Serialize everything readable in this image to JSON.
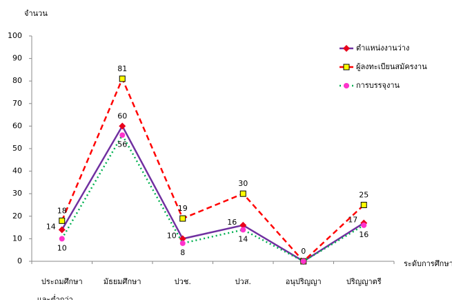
{
  "chart_data": {
    "type": "line",
    "y_label": "จำนวน",
    "x_label": "ระดับการศึกษา",
    "categories": [
      "ประถมศึกษา\nและต่ำกว่า",
      "มัธยมศึกษา",
      "ปวช.",
      "ปวส.",
      "อนุปริญญา",
      "ปริญญาตรี"
    ],
    "series": [
      {
        "name": "ตำแหน่งงานว่าง",
        "color": "#7030a0",
        "marker_color": "#e8001c",
        "marker": "diamond",
        "dash": "solid",
        "values": [
          14,
          60,
          10,
          16,
          0,
          17
        ],
        "value_labels": [
          "14",
          "60",
          "10",
          "16",
          null,
          "17"
        ]
      },
      {
        "name": "ผู้ลงทะเบียนสมัครงาน",
        "color": "#ff0000",
        "marker_color": "#ffff00",
        "marker": "square",
        "dash": "dashed",
        "values": [
          18,
          81,
          19,
          30,
          0,
          25
        ],
        "value_labels": [
          "18",
          "81",
          "19",
          "30",
          "0",
          "25"
        ]
      },
      {
        "name": "การบรรจุงาน",
        "color": "#00b050",
        "marker_color": "#ff33cc",
        "marker": "circle",
        "dash": "dotted",
        "values": [
          10,
          56,
          8,
          14,
          0,
          16
        ],
        "value_labels": [
          "10",
          "56",
          "8",
          "14",
          null,
          "16"
        ]
      }
    ],
    "ylim": [
      0,
      100
    ],
    "yticks": [
      0,
      10,
      20,
      30,
      40,
      50,
      60,
      70,
      80,
      90,
      100
    ],
    "grid": false,
    "legend": "top-right"
  }
}
